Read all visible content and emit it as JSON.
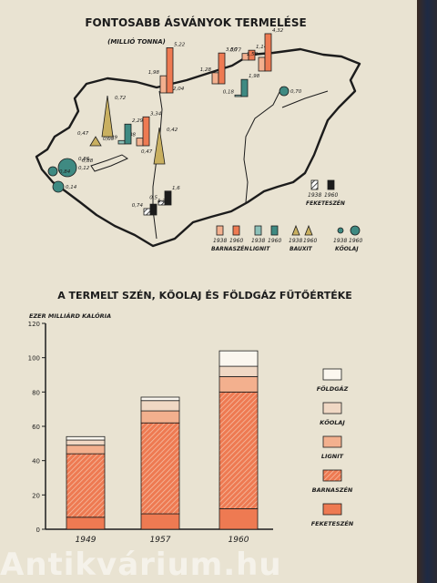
{
  "colors": {
    "paper": "#e9e3d2",
    "ink": "#1c1c1c",
    "orange": "#ee7a52",
    "orange_light": "#f3b08e",
    "teal": "#3f8a82",
    "olive": "#c9b060"
  },
  "map": {
    "title": "FONTOSABB ÁSVÁNYOK TERMELÉSE",
    "unit": "(MILLIÓ TONNA)",
    "bars": [
      {
        "type": "barnaszen",
        "v1938": 1.98,
        "v1960": 5.22,
        "l1": "1,98",
        "l2": "5,22"
      },
      {
        "type": "barnaszen",
        "v1938": 1.28,
        "v1960": 3.56,
        "l1": "1,28",
        "l2": "3,56"
      },
      {
        "type": "barnaszen",
        "v1938": 0.77,
        "v1960": 1.14,
        "l1": "0,77",
        "l2": "1,14"
      },
      {
        "type": "barnaszen",
        "v1938": 1.58,
        "v1960": 4.32,
        "l1": "1,58",
        "l2": "4,32"
      },
      {
        "type": "barnaszen",
        "v1938": 0.88,
        "v1960": 3.34,
        "l1": "0,88",
        "l2": "3,34"
      },
      {
        "type": "lignit",
        "v1938": 0.18,
        "v1960": 1.98,
        "l1": "0,18",
        "l2": "1,98"
      },
      {
        "type": "lignit",
        "v1938": 0.39,
        "v1960": 2.29,
        "l1": "0,39",
        "l2": "2,29"
      },
      {
        "type": "feketeszen",
        "v1938": 0.5,
        "v1960": 1.6,
        "l1": "0,5",
        "l2": "1,6"
      },
      {
        "type": "feketeszen",
        "v1938": 0.74,
        "v1960": 1.25,
        "l1": "0,74",
        "l2": "1,25"
      }
    ],
    "bauxit": [
      {
        "l1": "0,72"
      },
      {
        "l1": "0,05",
        "l2": "0,47"
      },
      {
        "l1": "0,42",
        "l2": "0,47"
      }
    ],
    "kolaj": [
      {
        "l1": "0,12",
        "l2": "0,86"
      },
      {
        "l1": "0,84"
      },
      {
        "l1": "0,14"
      },
      {
        "l1": "0,70"
      }
    ],
    "extra_labels": [
      "2,04",
      "0,88"
    ],
    "legend": {
      "feketeszen": {
        "y1": "1938",
        "y2": "1960",
        "label": "FEKETESZÉN"
      },
      "barnaszen": {
        "y1": "1938",
        "y2": "1960",
        "label": "BARNASZÉN"
      },
      "lignit": {
        "y1": "1938",
        "y2": "1960",
        "label": "LIGNIT"
      },
      "bauxit": {
        "y1": "1938",
        "y2": "1960",
        "label": "BAUXIT"
      },
      "kolaj": {
        "y1": "1938",
        "y2": "1960",
        "label": "KŐOLAJ"
      }
    }
  },
  "chart_data": {
    "type": "bar",
    "title": "A TERMELT SZÉN, KŐOLAJ ÉS FÖLDGÁZ FŰTŐÉRTÉKE",
    "ylabel": "EZER MILLIÁRD KALÓRIA",
    "categories": [
      "1949",
      "1957",
      "1960"
    ],
    "ylim": [
      0,
      120
    ],
    "yticks": [
      0,
      20,
      40,
      60,
      80,
      100,
      120
    ],
    "stacked": true,
    "series": [
      {
        "name": "FEKETESZÉN",
        "values": [
          7,
          9,
          12
        ]
      },
      {
        "name": "BARNASZÉN",
        "values": [
          37,
          53,
          68
        ]
      },
      {
        "name": "LIGNIT",
        "values": [
          5,
          7,
          9
        ]
      },
      {
        "name": "KŐOLAJ",
        "values": [
          3,
          6,
          6
        ]
      },
      {
        "name": "FÖLDGÁZ",
        "values": [
          2,
          2,
          9
        ]
      }
    ],
    "legend_position": "right",
    "grid": false
  },
  "watermark": "Antikvárium.hu"
}
